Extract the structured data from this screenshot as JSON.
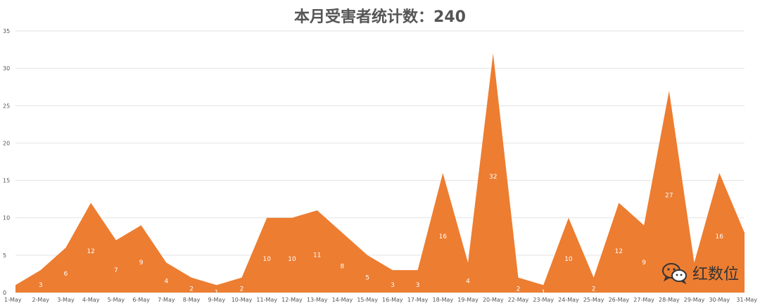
{
  "chart_data": {
    "type": "area",
    "title": "本月受害者统计数：240",
    "categories": [
      "1-May",
      "2-May",
      "3-May",
      "4-May",
      "5-May",
      "6-May",
      "7-May",
      "8-May",
      "9-May",
      "10-May",
      "11-May",
      "12-May",
      "13-May",
      "14-May",
      "15-May",
      "16-May",
      "17-May",
      "18-May",
      "19-May",
      "20-May",
      "22-May",
      "23-May",
      "24-May",
      "25-May",
      "26-May",
      "27-May",
      "28-May",
      "29-May",
      "30-May",
      "31-May"
    ],
    "values": [
      1,
      3,
      6,
      12,
      7,
      9,
      4,
      2,
      1,
      2,
      10,
      10,
      11,
      8,
      5,
      3,
      3,
      16,
      4,
      32,
      2,
      1,
      10,
      2,
      12,
      9,
      27,
      4,
      16,
      8
    ],
    "data_labels": [
      "",
      "3",
      "6",
      "12",
      "7",
      "9",
      "4",
      "2",
      "1",
      "2",
      "10",
      "10",
      "11",
      "8",
      "5",
      "3",
      "3",
      "16",
      "4",
      "32",
      "2",
      "1",
      "10",
      "2",
      "12",
      "9",
      "27",
      "",
      "16",
      ""
    ],
    "ylim": [
      0,
      35
    ],
    "yticks": [
      0,
      5,
      10,
      15,
      20,
      25,
      30,
      35
    ],
    "grid": true,
    "legend": "none",
    "xlabel": "",
    "ylabel": "",
    "color": "#ED7D31"
  },
  "watermark": {
    "text": "红数位",
    "icon": "wechat-icon"
  }
}
